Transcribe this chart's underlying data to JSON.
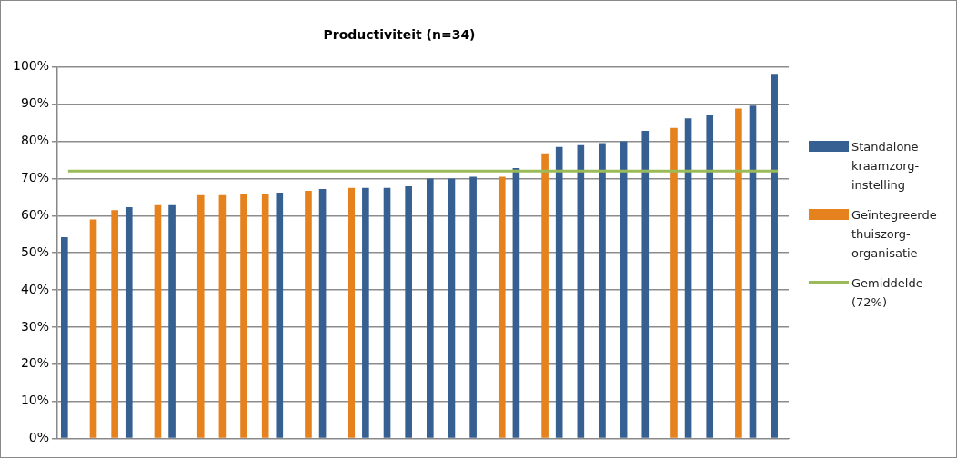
{
  "chart_data": {
    "type": "bar",
    "title": "Productiviteit (n=34)",
    "categories": [
      null,
      null,
      null,
      null,
      null,
      null,
      null,
      null,
      null,
      null,
      null,
      null,
      null,
      null,
      null,
      null,
      null,
      null,
      null,
      null,
      null,
      null,
      null,
      null,
      null,
      null,
      null,
      null,
      null,
      null,
      null,
      null,
      null,
      null
    ],
    "series": [
      {
        "name": "Standalone kraamzorg-instelling",
        "color": "#376092",
        "values": [
          54.2,
          null,
          null,
          62.3,
          null,
          62.8,
          null,
          null,
          null,
          null,
          66.2,
          null,
          67.2,
          null,
          67.5,
          67.5,
          67.9,
          70.0,
          70.0,
          70.5,
          null,
          72.8,
          null,
          78.5,
          79.0,
          79.5,
          80.0,
          82.8,
          null,
          86.2,
          87.1,
          null,
          89.6,
          98.2
        ]
      },
      {
        "name": "Geïntegreerde thuiszorg-organisatie",
        "color": "#e6821e",
        "values": [
          null,
          59.0,
          61.5,
          null,
          62.8,
          null,
          65.5,
          65.5,
          65.8,
          65.8,
          null,
          66.7,
          null,
          67.5,
          null,
          null,
          null,
          null,
          null,
          null,
          70.5,
          null,
          76.8,
          null,
          null,
          null,
          null,
          null,
          83.6,
          null,
          null,
          88.8,
          null,
          null
        ]
      },
      {
        "name": "Gemiddelde (72%)",
        "type": "line",
        "color": "#9bbb59",
        "marker": "none",
        "values": [
          72,
          72,
          72,
          72,
          72,
          72,
          72,
          72,
          72,
          72,
          72,
          72,
          72,
          72,
          72,
          72,
          72,
          72,
          72,
          72,
          72,
          72,
          72,
          72,
          72,
          72,
          72,
          72,
          72,
          72,
          72,
          72,
          72,
          72
        ]
      }
    ],
    "ylim": [
      0,
      100
    ],
    "yticks": [
      {
        "value": 0,
        "label": "0%"
      },
      {
        "value": 10,
        "label": "10%"
      },
      {
        "value": 20,
        "label": "20%"
      },
      {
        "value": 30,
        "label": "30%"
      },
      {
        "value": 40,
        "label": "40%"
      },
      {
        "value": 50,
        "label": "50%"
      },
      {
        "value": 60,
        "label": "60%"
      },
      {
        "value": 70,
        "label": "70%"
      },
      {
        "value": 80,
        "label": "80%"
      },
      {
        "value": 90,
        "label": "90%"
      },
      {
        "value": 100,
        "label": "100%"
      }
    ],
    "grid": "y",
    "legend": "right"
  }
}
